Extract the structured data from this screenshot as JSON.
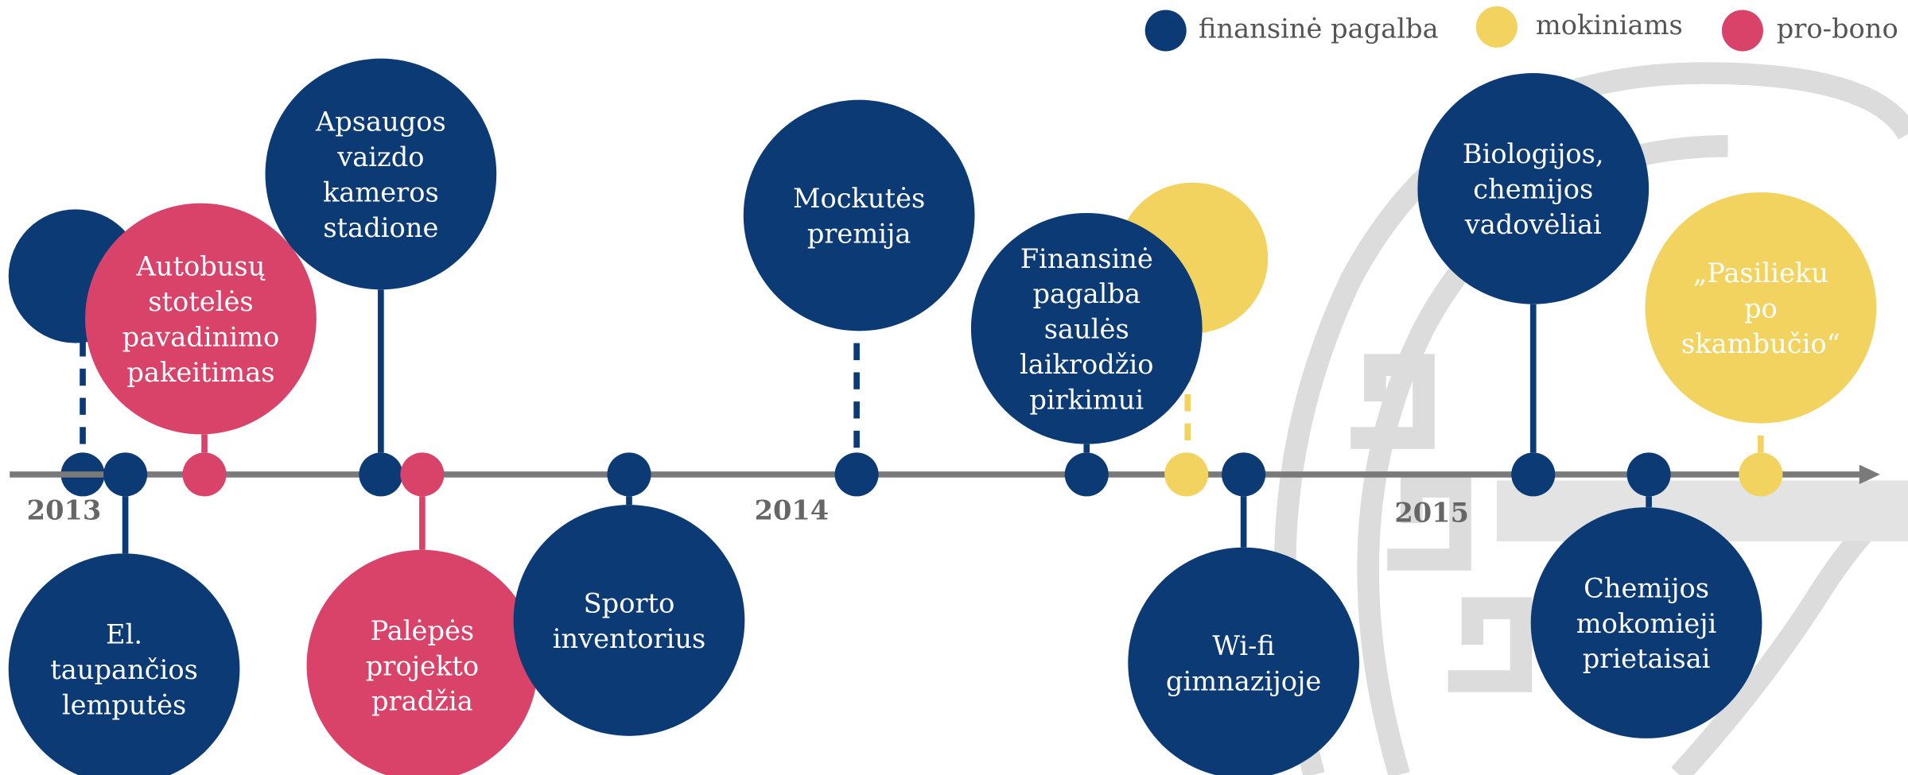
{
  "legend": [
    {
      "name": "finansinė pagalba",
      "color": "#0b3a75"
    },
    {
      "name": "mokiniams",
      "color": "#f3d35f"
    },
    {
      "name": "pro-bono",
      "color": "#d9436a"
    }
  ],
  "years": [
    "2013",
    "2014",
    "2015"
  ],
  "groups": [
    {
      "events": [
        [
          "El.",
          "taupančios",
          "lemputės"
        ],
        [
          "Apsaugos",
          "vaizdo",
          "kameros",
          "stadione"
        ],
        [
          "Sporto",
          "inventorius"
        ],
        [
          "Mockutės",
          "premija"
        ],
        [
          "Finansinė",
          "pagalba",
          "saulės",
          "laikrodžio",
          "pirkimui"
        ],
        [
          "Wi-fi",
          "gimnazijoje"
        ],
        [
          "Biologijos,",
          "chemijos",
          "vadovėliai"
        ],
        [
          "Chemijos",
          "mokomieji",
          "prietaisai"
        ]
      ]
    },
    {
      "events": [
        [
          "„Pasilieku",
          "po",
          "skambučio“"
        ]
      ]
    },
    {
      "events": [
        [
          "Autobusų",
          "stotelės",
          "pavadinimo",
          "pakeitimas"
        ],
        [
          "Palėpės",
          "projekto",
          "pradžia"
        ]
      ]
    }
  ]
}
